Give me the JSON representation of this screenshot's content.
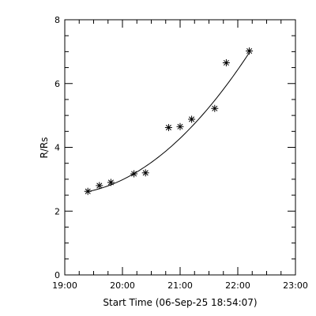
{
  "chart_data": {
    "type": "scatter",
    "title": "",
    "xlabel": "Start Time (06-Sep-25 18:54:07)",
    "ylabel": "R/Rs",
    "x_tick_labels": [
      "19:00",
      "20:00",
      "21:00",
      "22:00",
      "23:00"
    ],
    "x_tick_hours": [
      19,
      20,
      21,
      22,
      23
    ],
    "xlim_hours": [
      19.0,
      23.0
    ],
    "y_tick_labels": [
      "0",
      "2",
      "4",
      "6",
      "8"
    ],
    "y_ticks": [
      0,
      2,
      4,
      6,
      8
    ],
    "ylim": [
      0,
      8
    ],
    "x_minor_step_hours": 0.25,
    "y_minor_step": 0.5,
    "marker": "asterisk",
    "grid": false,
    "series": [
      {
        "points": [
          {
            "time": "19:24",
            "x": 19.4,
            "y": 2.62
          },
          {
            "time": "19:36",
            "x": 19.6,
            "y": 2.8
          },
          {
            "time": "19:48",
            "x": 19.8,
            "y": 2.9
          },
          {
            "time": "20:12",
            "x": 20.2,
            "y": 3.17
          },
          {
            "time": "20:24",
            "x": 20.4,
            "y": 3.2
          },
          {
            "time": "20:48",
            "x": 20.8,
            "y": 4.62
          },
          {
            "time": "21:00",
            "x": 21.0,
            "y": 4.65
          },
          {
            "time": "21:12",
            "x": 21.2,
            "y": 4.88
          },
          {
            "time": "21:36",
            "x": 21.6,
            "y": 5.22
          },
          {
            "time": "21:48",
            "x": 21.8,
            "y": 6.65
          },
          {
            "time": "22:12",
            "x": 22.2,
            "y": 7.02
          }
        ],
        "fit": {
          "type": "quadratic",
          "x_range": [
            19.4,
            22.2
          ],
          "samples": [
            {
              "x": 19.4,
              "y": 2.55
            },
            {
              "x": 20.0,
              "y": 3.05
            },
            {
              "x": 20.5,
              "y": 3.62
            },
            {
              "x": 21.0,
              "y": 4.28
            },
            {
              "x": 21.5,
              "y": 5.08
            },
            {
              "x": 22.2,
              "y": 7.05
            }
          ]
        }
      }
    ]
  }
}
